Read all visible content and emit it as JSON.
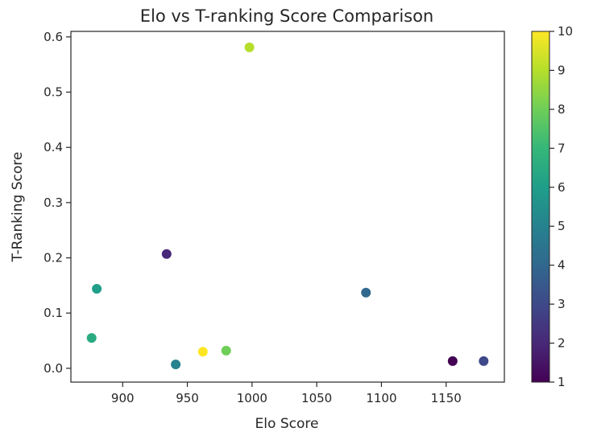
{
  "chart_data": {
    "type": "scatter",
    "title": "Elo vs T-ranking Score Comparison",
    "xlabel": "Elo Score",
    "ylabel": "T-Ranking Score",
    "xlim": [
      860,
      1195
    ],
    "ylim": [
      -0.025,
      0.61
    ],
    "xticks": [
      900,
      950,
      1000,
      1050,
      1100,
      1150
    ],
    "xtick_labels": [
      "900",
      "950",
      "1000",
      "1050",
      "1100",
      "1150"
    ],
    "yticks": [
      0.0,
      0.1,
      0.2,
      0.3,
      0.4,
      0.5,
      0.6
    ],
    "ytick_labels": [
      "0.0",
      "0.1",
      "0.2",
      "0.3",
      "0.4",
      "0.5",
      "0.6"
    ],
    "grid": false,
    "colormap": "viridis",
    "colorbar": {
      "min": 1,
      "max": 10,
      "ticks": [
        1,
        2,
        3,
        4,
        5,
        6,
        7,
        8,
        9,
        10
      ],
      "tick_labels": [
        "1",
        "2",
        "3",
        "4",
        "5",
        "6",
        "7",
        "8",
        "9",
        "10"
      ]
    },
    "points": [
      {
        "x": 876,
        "y": 0.055,
        "c": 6.5
      },
      {
        "x": 880,
        "y": 0.144,
        "c": 6
      },
      {
        "x": 934,
        "y": 0.207,
        "c": 2
      },
      {
        "x": 941,
        "y": 0.007,
        "c": 5
      },
      {
        "x": 962,
        "y": 0.03,
        "c": 10
      },
      {
        "x": 980,
        "y": 0.032,
        "c": 8
      },
      {
        "x": 998,
        "y": 0.581,
        "c": 9
      },
      {
        "x": 1088,
        "y": 0.137,
        "c": 4
      },
      {
        "x": 1155,
        "y": 0.013,
        "c": 1
      },
      {
        "x": 1179,
        "y": 0.013,
        "c": 3
      }
    ]
  }
}
